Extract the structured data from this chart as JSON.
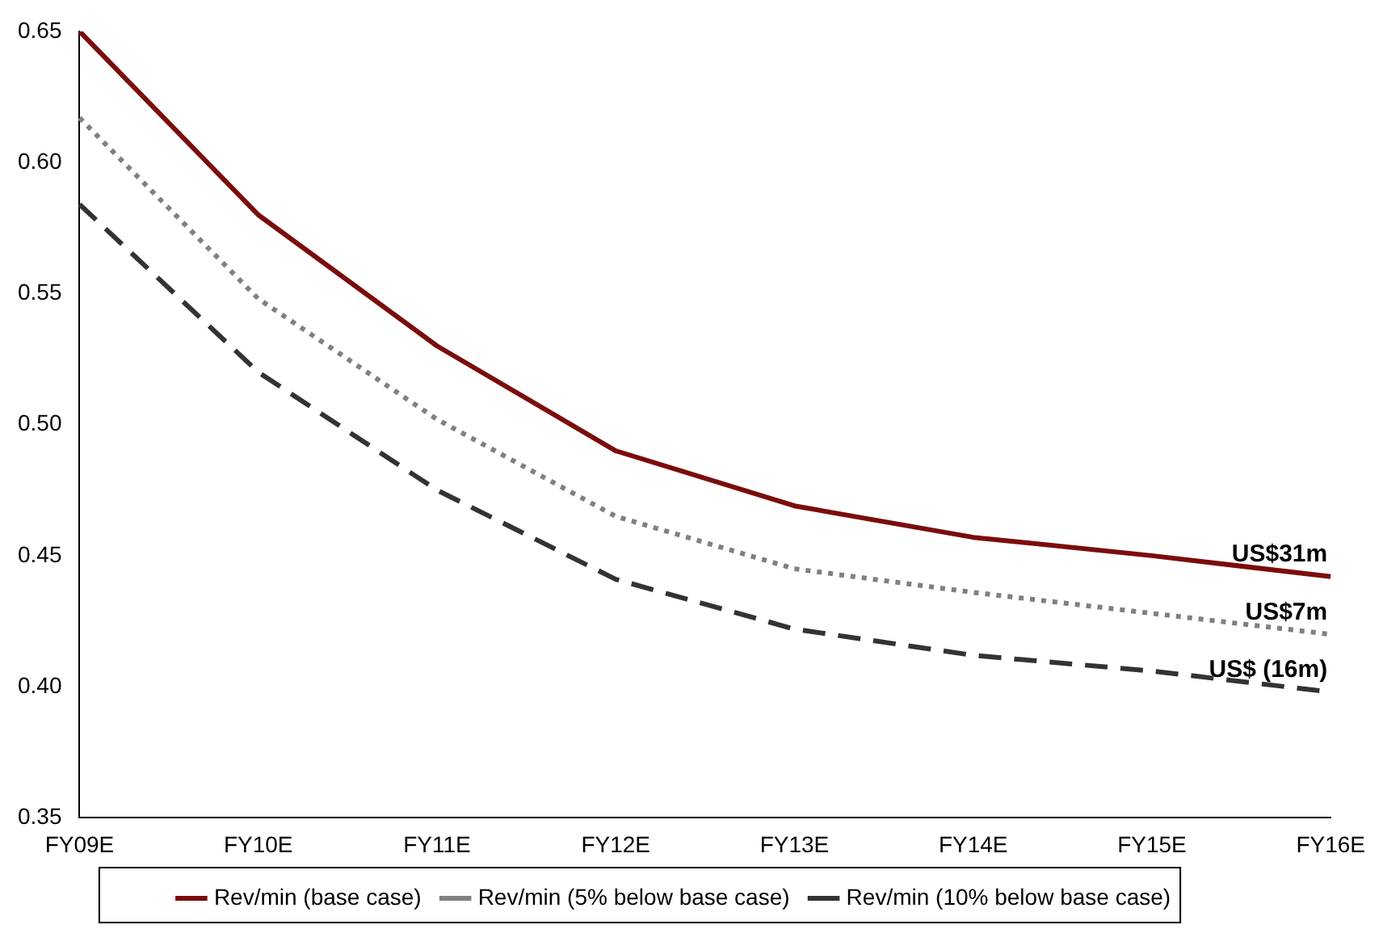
{
  "chart_data": {
    "type": "line",
    "categories": [
      "FY09E",
      "FY10E",
      "FY11E",
      "FY12E",
      "FY13E",
      "FY14E",
      "FY15E",
      "FY16E"
    ],
    "series": [
      {
        "name": "Rev/min (base case)",
        "color": "#7b0c0c",
        "line_style": "solid",
        "values": [
          0.65,
          0.58,
          0.53,
          0.49,
          0.469,
          0.457,
          0.45,
          0.442
        ]
      },
      {
        "name": "Rev/min (5% below base case)",
        "color": "#808080",
        "line_style": "dotted",
        "values": [
          0.617,
          0.548,
          0.502,
          0.465,
          0.445,
          0.436,
          0.428,
          0.42
        ]
      },
      {
        "name": "Rev/min (10% below base case)",
        "color": "#333333",
        "line_style": "dashed",
        "values": [
          0.584,
          0.52,
          0.475,
          0.441,
          0.422,
          0.412,
          0.406,
          0.398
        ]
      }
    ],
    "ylim": [
      0.35,
      0.65
    ],
    "yticks": [
      {
        "value": 0.35,
        "label": "0.35"
      },
      {
        "value": 0.4,
        "label": "0.40"
      },
      {
        "value": 0.45,
        "label": "0.45"
      },
      {
        "value": 0.5,
        "label": "0.50"
      },
      {
        "value": 0.55,
        "label": "0.55"
      },
      {
        "value": 0.6,
        "label": "0.60"
      },
      {
        "value": 0.65,
        "label": "0.65"
      }
    ],
    "annotations": [
      {
        "text": "US$31m",
        "x": "FY16E",
        "y": 0.442
      },
      {
        "text": "US$7m",
        "x": "FY16E",
        "y": 0.42
      },
      {
        "text": "US$ (16m)",
        "x": "FY16E",
        "y": 0.398
      }
    ],
    "grid": false,
    "legend": "bottom",
    "marker": "none"
  }
}
